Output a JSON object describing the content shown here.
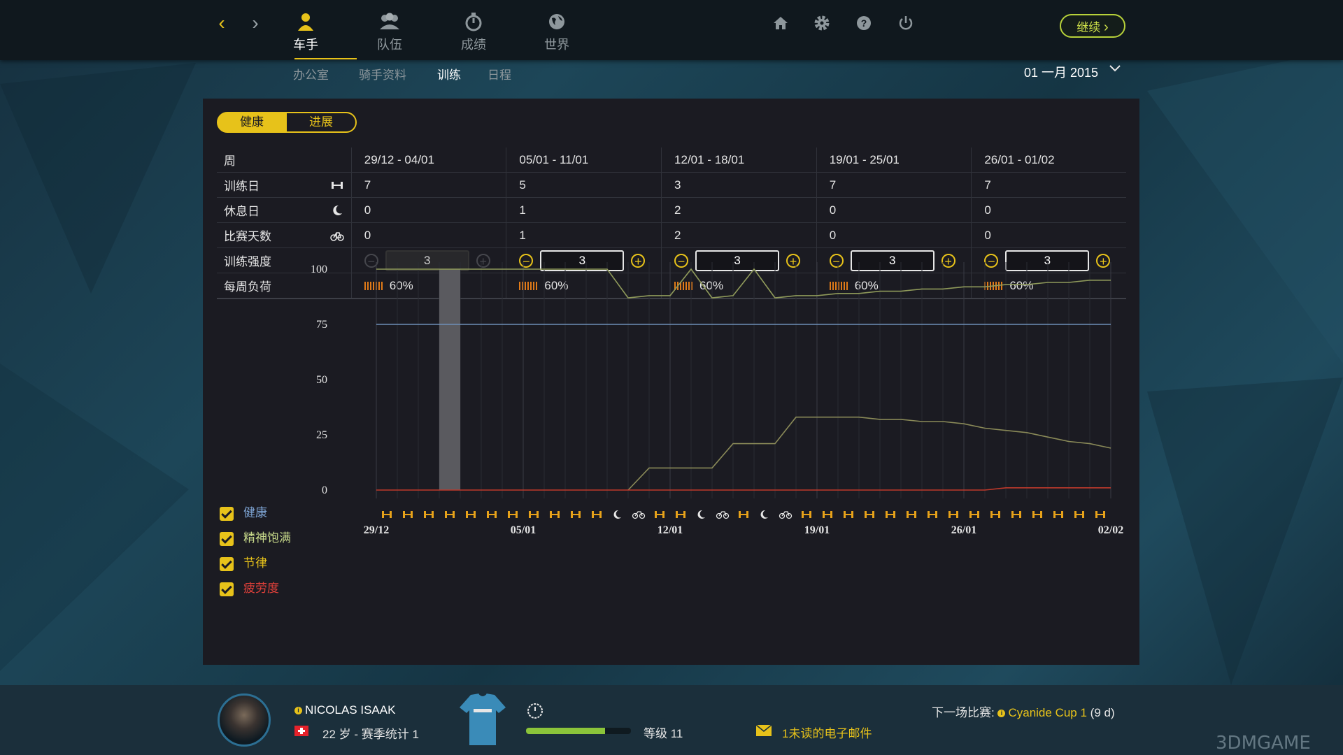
{
  "nav": {
    "back": "‹",
    "forward": "›",
    "tabs": [
      {
        "label": "车手",
        "icon": "rider-icon",
        "active": true
      },
      {
        "label": "队伍",
        "icon": "team-icon",
        "active": false
      },
      {
        "label": "成绩",
        "icon": "stopwatch-icon",
        "active": false
      },
      {
        "label": "世界",
        "icon": "globe-icon",
        "active": false
      }
    ],
    "tools": [
      "home-icon",
      "gear-icon",
      "help-icon",
      "power-icon"
    ],
    "continue_label": "继续"
  },
  "subnav": {
    "items": [
      "办公室",
      "骑手资料",
      "训练",
      "日程"
    ],
    "active": "训练",
    "date": "01 一月 2015"
  },
  "panel": {
    "toggle": {
      "left": "健康",
      "right": "进展",
      "active": "健康"
    },
    "table": {
      "row_labels": {
        "week": "周",
        "training_days": "训练日",
        "rest_days": "休息日",
        "race_days": "比赛天数",
        "intensity": "训练强度",
        "weekly_load": "每周负荷"
      },
      "weeks": [
        {
          "range": "29/12 - 04/01",
          "training_days": "7",
          "rest_days": "0",
          "race_days": "0",
          "intensity": "3",
          "intensity_enabled": false,
          "load": "60%"
        },
        {
          "range": "05/01 - 11/01",
          "training_days": "5",
          "rest_days": "1",
          "race_days": "1",
          "intensity": "3",
          "intensity_enabled": true,
          "load": "60%"
        },
        {
          "range": "12/01 - 18/01",
          "training_days": "3",
          "rest_days": "2",
          "race_days": "2",
          "intensity": "3",
          "intensity_enabled": true,
          "load": "60%"
        },
        {
          "range": "19/01 - 25/01",
          "training_days": "7",
          "rest_days": "0",
          "race_days": "0",
          "intensity": "3",
          "intensity_enabled": true,
          "load": "60%"
        },
        {
          "range": "26/01 - 01/02",
          "training_days": "7",
          "rest_days": "0",
          "race_days": "0",
          "intensity": "3",
          "intensity_enabled": true,
          "load": "60%"
        }
      ]
    },
    "legend": [
      {
        "label": "健康",
        "color": "#7fa6d6",
        "checked": true
      },
      {
        "label": "精神饱满",
        "color": "#c7d98a",
        "checked": true
      },
      {
        "label": "节律",
        "color": "#e7c21a",
        "checked": true
      },
      {
        "label": "疲劳度",
        "color": "#e0403a",
        "checked": true
      }
    ]
  },
  "chart_data": {
    "type": "line",
    "ylim": [
      0,
      100
    ],
    "yticks": [
      "100",
      "75",
      "50",
      "25",
      "0"
    ],
    "xtick_labels": [
      "29/12",
      "05/01",
      "12/01",
      "19/01",
      "26/01",
      "02/02"
    ],
    "day_activities": [
      "train",
      "train",
      "train",
      "train",
      "train",
      "train",
      "train",
      "train",
      "train",
      "train",
      "train",
      "rest",
      "race",
      "train",
      "train",
      "rest",
      "race",
      "train",
      "rest",
      "race",
      "train",
      "train",
      "train",
      "train",
      "train",
      "train",
      "train",
      "train",
      "train",
      "train",
      "train",
      "train",
      "train",
      "train",
      "train"
    ],
    "current_day_index": 3,
    "series": [
      {
        "name": "健康",
        "color": "#6e8fb8",
        "values": [
          75,
          75,
          75,
          75,
          75,
          75,
          75,
          75,
          75,
          75,
          75,
          75,
          75,
          75,
          75,
          75,
          75,
          75,
          75,
          75,
          75,
          75,
          75,
          75,
          75,
          75,
          75,
          75,
          75,
          75,
          75,
          75,
          75,
          75,
          75,
          75
        ]
      },
      {
        "name": "精神饱满",
        "color": "#8f9a5a",
        "values": [
          100,
          100,
          100,
          100,
          100,
          100,
          100,
          100,
          100,
          100,
          100,
          100,
          87,
          88,
          88,
          100,
          87,
          88,
          100,
          87,
          88,
          88,
          89,
          89,
          90,
          90,
          91,
          91,
          92,
          92,
          93,
          93,
          94,
          94,
          95,
          95
        ]
      },
      {
        "name": "节律",
        "color": "#8a8a58",
        "values": [
          null,
          null,
          null,
          null,
          null,
          null,
          null,
          null,
          null,
          null,
          null,
          null,
          0,
          10,
          10,
          10,
          10,
          21,
          21,
          21,
          33,
          33,
          33,
          33,
          32,
          32,
          31,
          31,
          30,
          28,
          27,
          26,
          24,
          22,
          21,
          19
        ]
      },
      {
        "name": "疲劳度",
        "color": "#c0392b",
        "values": [
          0,
          0,
          0,
          0,
          0,
          0,
          0,
          0,
          0,
          0,
          0,
          0,
          0,
          0,
          0,
          0,
          0,
          0,
          0,
          0,
          0,
          0,
          0,
          0,
          0,
          0,
          0,
          0,
          0,
          0,
          1,
          1,
          1,
          1,
          1,
          1
        ]
      }
    ]
  },
  "rider": {
    "name": "NICOLAS ISAAK",
    "info": "22 岁 - 赛季统计 1",
    "level": "等级 11",
    "xp_fraction": 0.75,
    "mail": "1未读的电子邮件",
    "next_race_label": "下一场比赛:",
    "next_race": "Cyanide Cup 1",
    "next_race_days": " (9 d)"
  },
  "watermark": "3DMGAME"
}
